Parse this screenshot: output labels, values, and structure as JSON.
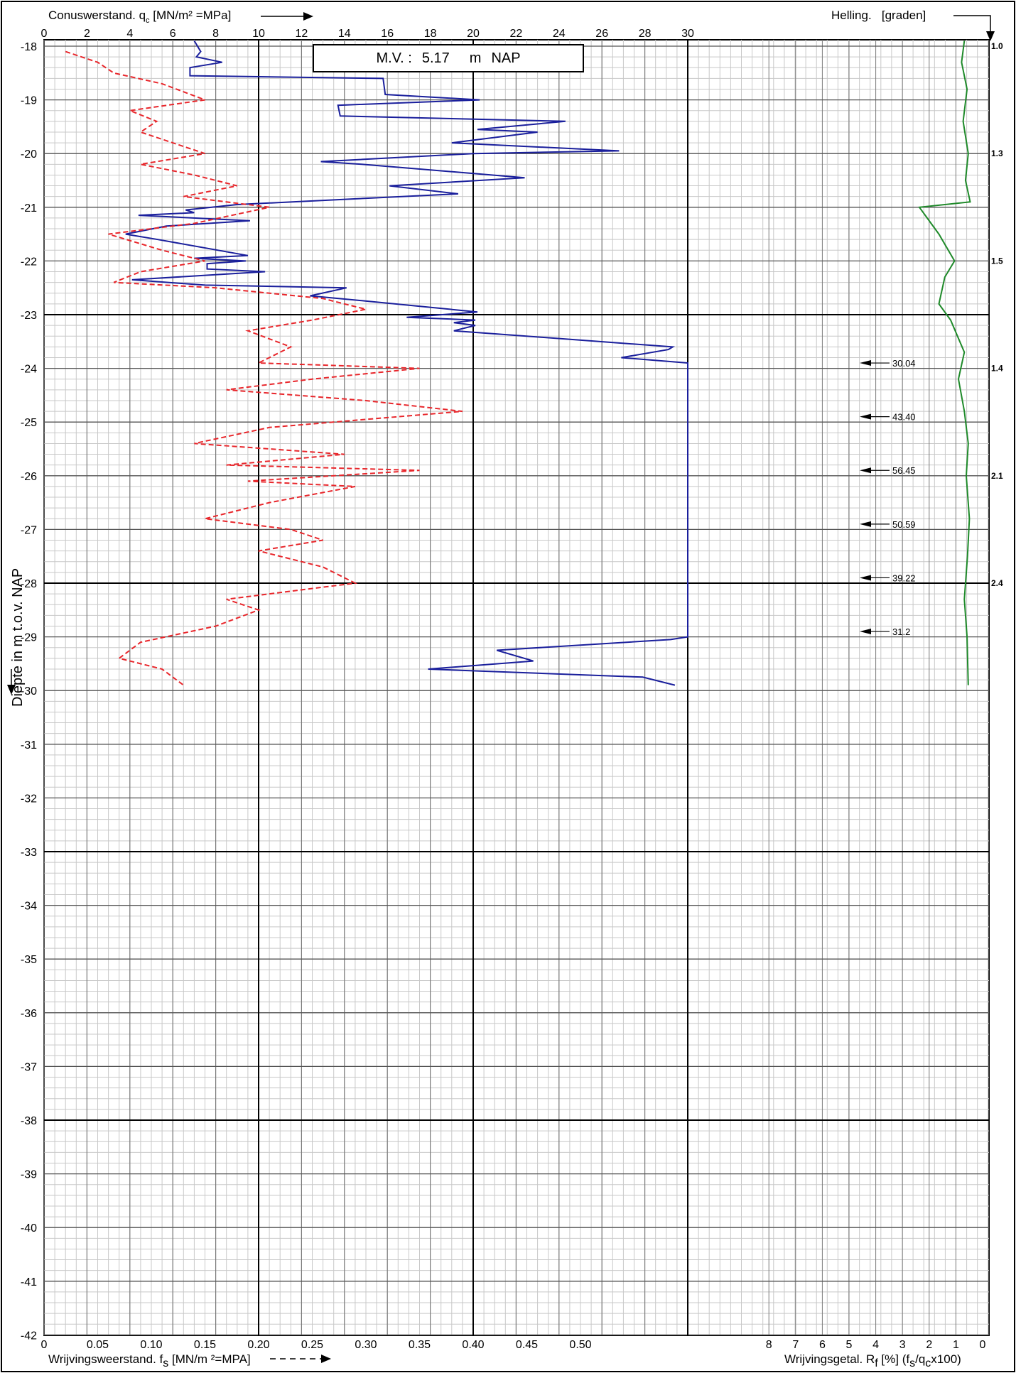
{
  "header": {
    "qc_title": "Conuswerstand. q",
    "qc_sub": "c",
    "qc_unit": "[MN/m² =MPa]",
    "helling_title": "Helling.",
    "helling_unit": "[graden]"
  },
  "footer": {
    "fs_title": "Wrijvingsweerstand. f",
    "fs_sub": "s",
    "fs_unit": "[MN/m ²=MPA]",
    "rf_title": "Wrijvingsgetal. R",
    "rf_sub": "f",
    "rf_unit": "[%]  (f",
    "rf_formula_sub1": "s",
    "rf_formula_mid": "/q",
    "rf_formula_sub2": "c",
    "rf_formula_end": "x100)"
  },
  "y_axis_title": "Diepte in m t.o.v. NAP",
  "mv_label": {
    "prefix": "M.V. :",
    "value": "5.17",
    "unit": "m",
    "ref": "NAP"
  },
  "chart_data": {
    "type": "line",
    "y_axis": {
      "label": "Diepte in m t.o.v. NAP",
      "range": [
        -17.8,
        -42
      ],
      "ticks": [
        -18,
        -19,
        -20,
        -21,
        -22,
        -23,
        -24,
        -25,
        -26,
        -27,
        -28,
        -29,
        -30,
        -31,
        -32,
        -33,
        -34,
        -35,
        -36,
        -37,
        -38,
        -39,
        -40,
        -41,
        -42
      ]
    },
    "top_x_axis": {
      "label": "Conuswerstand qc [MN/m2=MPa]",
      "range": [
        0,
        35
      ],
      "ticks": [
        0,
        2,
        4,
        6,
        8,
        10,
        12,
        14,
        16,
        18,
        20,
        22,
        24,
        26,
        28,
        30
      ]
    },
    "bottom_x_axis_fs": {
      "label": "Wrijvingsweerstand fs [MN/m2=MPA]",
      "range": [
        0,
        0.5
      ],
      "ticks": [
        "0",
        "0.05",
        "0.10",
        "0.15",
        "0.20",
        "0.25",
        "0.30",
        "0.35",
        "0.40",
        "0.45",
        "0.50"
      ]
    },
    "bottom_x_axis_rf": {
      "label": "Wrijvingsgetal Rf [%]",
      "ticks": [
        "8",
        "7",
        "6",
        "5",
        "4",
        "3",
        "2",
        "1",
        "0"
      ]
    },
    "helling_ticks": [
      {
        "depth": -18,
        "label": "1.0"
      },
      {
        "depth": -20,
        "label": "1.3"
      },
      {
        "depth": -22,
        "label": "1.5"
      },
      {
        "depth": -24,
        "label": "1.4"
      },
      {
        "depth": -26,
        "label": "2.1"
      },
      {
        "depth": -28,
        "label": "2.4"
      }
    ],
    "qc_over_range_labels": [
      {
        "depth": -23.9,
        "value": "30.04"
      },
      {
        "depth": -24.9,
        "value": "43.40"
      },
      {
        "depth": -25.9,
        "value": "56.45"
      },
      {
        "depth": -26.9,
        "value": "50.59"
      },
      {
        "depth": -27.9,
        "value": "39.22"
      },
      {
        "depth": -28.9,
        "value": "31.2"
      }
    ],
    "series": [
      {
        "name": "qc",
        "color": "#1a1f9c",
        "style": "solid",
        "points": [
          [
            7.0,
            -17.9
          ],
          [
            7.3,
            -18.1
          ],
          [
            7.1,
            -18.2
          ],
          [
            8.3,
            -18.3
          ],
          [
            6.8,
            -18.4
          ],
          [
            6.8,
            -18.55
          ],
          [
            15.8,
            -18.6
          ],
          [
            15.9,
            -18.9
          ],
          [
            20.3,
            -19.0
          ],
          [
            13.7,
            -19.1
          ],
          [
            13.8,
            -19.3
          ],
          [
            24.3,
            -19.4
          ],
          [
            20.2,
            -19.55
          ],
          [
            23.0,
            -19.6
          ],
          [
            19.0,
            -19.8
          ],
          [
            26.8,
            -19.95
          ],
          [
            20.0,
            -20.0
          ],
          [
            12.9,
            -20.15
          ],
          [
            14.8,
            -20.2
          ],
          [
            22.4,
            -20.45
          ],
          [
            16.1,
            -20.6
          ],
          [
            19.3,
            -20.75
          ],
          [
            9.0,
            -20.95
          ],
          [
            6.6,
            -21.05
          ],
          [
            7.0,
            -21.1
          ],
          [
            4.4,
            -21.15
          ],
          [
            9.6,
            -21.25
          ],
          [
            5.7,
            -21.35
          ],
          [
            3.8,
            -21.5
          ],
          [
            5.3,
            -21.6
          ],
          [
            9.5,
            -21.9
          ],
          [
            7.0,
            -21.95
          ],
          [
            9.4,
            -22.0
          ],
          [
            7.6,
            -22.05
          ],
          [
            7.6,
            -22.15
          ],
          [
            10.3,
            -22.2
          ],
          [
            4.1,
            -22.35
          ],
          [
            7.5,
            -22.45
          ],
          [
            14.1,
            -22.5
          ],
          [
            12.4,
            -22.65
          ],
          [
            15.1,
            -22.75
          ],
          [
            20.2,
            -22.95
          ],
          [
            16.9,
            -23.05
          ],
          [
            20.1,
            -23.1
          ],
          [
            19.1,
            -23.15
          ],
          [
            20.1,
            -23.2
          ],
          [
            19.1,
            -23.3
          ],
          [
            29.3,
            -23.6
          ],
          [
            29.1,
            -23.65
          ],
          [
            26.9,
            -23.8
          ],
          [
            30.0,
            -23.9
          ],
          [
            30.0,
            -29.0
          ],
          [
            29.2,
            -29.05
          ],
          [
            21.1,
            -29.25
          ],
          [
            22.8,
            -29.45
          ],
          [
            17.9,
            -29.6
          ],
          [
            27.9,
            -29.75
          ],
          [
            29.4,
            -29.9
          ]
        ]
      },
      {
        "name": "fs",
        "color": "#e8262b",
        "style": "dashed",
        "points": [
          [
            0.02,
            -18.1
          ],
          [
            0.05,
            -18.3
          ],
          [
            0.065,
            -18.5
          ],
          [
            0.11,
            -18.7
          ],
          [
            0.15,
            -19.0
          ],
          [
            0.08,
            -19.2
          ],
          [
            0.105,
            -19.4
          ],
          [
            0.09,
            -19.6
          ],
          [
            0.12,
            -19.8
          ],
          [
            0.15,
            -20.0
          ],
          [
            0.09,
            -20.2
          ],
          [
            0.14,
            -20.4
          ],
          [
            0.18,
            -20.6
          ],
          [
            0.13,
            -20.8
          ],
          [
            0.21,
            -21.0
          ],
          [
            0.14,
            -21.3
          ],
          [
            0.06,
            -21.5
          ],
          [
            0.11,
            -21.8
          ],
          [
            0.15,
            -22.0
          ],
          [
            0.09,
            -22.2
          ],
          [
            0.065,
            -22.4
          ],
          [
            0.16,
            -22.5
          ],
          [
            0.26,
            -22.7
          ],
          [
            0.3,
            -22.9
          ],
          [
            0.25,
            -23.1
          ],
          [
            0.19,
            -23.3
          ],
          [
            0.23,
            -23.6
          ],
          [
            0.2,
            -23.9
          ],
          [
            0.35,
            -24.0
          ],
          [
            0.25,
            -24.2
          ],
          [
            0.17,
            -24.4
          ],
          [
            0.3,
            -24.6
          ],
          [
            0.39,
            -24.8
          ],
          [
            0.21,
            -25.1
          ],
          [
            0.14,
            -25.4
          ],
          [
            0.28,
            -25.6
          ],
          [
            0.17,
            -25.8
          ],
          [
            0.35,
            -25.9
          ],
          [
            0.19,
            -26.1
          ],
          [
            0.29,
            -26.2
          ],
          [
            0.21,
            -26.5
          ],
          [
            0.15,
            -26.8
          ],
          [
            0.23,
            -27.0
          ],
          [
            0.26,
            -27.2
          ],
          [
            0.2,
            -27.4
          ],
          [
            0.26,
            -27.7
          ],
          [
            0.29,
            -28.0
          ],
          [
            0.17,
            -28.3
          ],
          [
            0.2,
            -28.5
          ],
          [
            0.16,
            -28.8
          ],
          [
            0.09,
            -29.1
          ],
          [
            0.07,
            -29.4
          ],
          [
            0.11,
            -29.6
          ],
          [
            0.13,
            -29.9
          ]
        ]
      },
      {
        "name": "helling",
        "color": "#1f8a2a",
        "style": "solid",
        "points": [
          [
            1.05,
            -17.9
          ],
          [
            1.12,
            -18.3
          ],
          [
            0.98,
            -18.8
          ],
          [
            1.08,
            -19.4
          ],
          [
            0.95,
            -20.0
          ],
          [
            1.02,
            -20.5
          ],
          [
            0.9,
            -20.9
          ],
          [
            2.2,
            -21.0
          ],
          [
            1.7,
            -21.5
          ],
          [
            1.3,
            -22.0
          ],
          [
            1.55,
            -22.3
          ],
          [
            1.7,
            -22.8
          ],
          [
            1.4,
            -23.1
          ],
          [
            1.05,
            -23.7
          ],
          [
            1.2,
            -24.2
          ],
          [
            1.05,
            -24.8
          ],
          [
            0.95,
            -25.4
          ],
          [
            1.0,
            -26.0
          ],
          [
            0.92,
            -26.8
          ],
          [
            0.97,
            -27.5
          ],
          [
            1.05,
            -28.3
          ],
          [
            0.98,
            -29.0
          ],
          [
            0.95,
            -29.9
          ]
        ]
      }
    ]
  }
}
